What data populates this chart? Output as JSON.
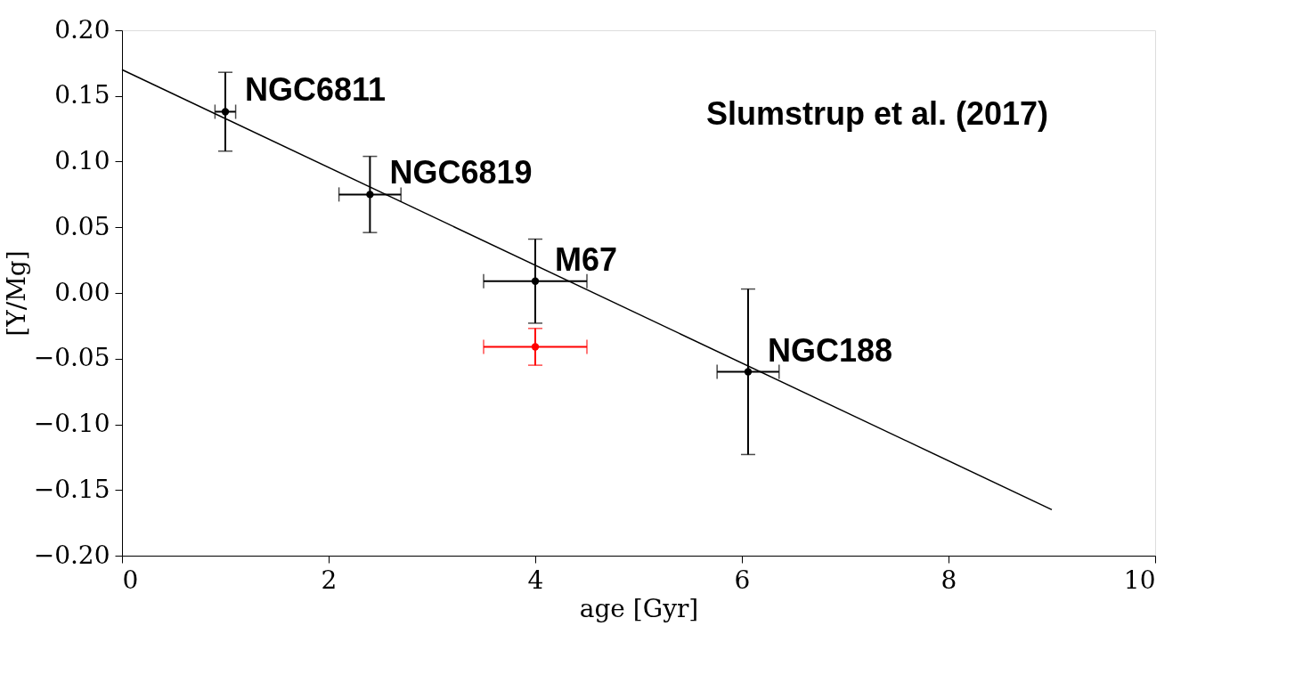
{
  "chart_data": {
    "type": "scatter",
    "xlabel": "age [Gyr]",
    "ylabel": "[Y/Mg]",
    "xlim": [
      0,
      10
    ],
    "ylim": [
      -0.2,
      0.2
    ],
    "xticks": [
      0,
      2,
      4,
      6,
      8,
      10
    ],
    "yticks": [
      {
        "value": -0.2,
        "label": "−0.20"
      },
      {
        "value": -0.15,
        "label": "−0.15"
      },
      {
        "value": -0.1,
        "label": "−0.10"
      },
      {
        "value": -0.05,
        "label": "−0.05"
      },
      {
        "value": 0,
        "label": "0.00"
      },
      {
        "value": 0.05,
        "label": "0.05"
      },
      {
        "value": 0.1,
        "label": "0.10"
      },
      {
        "value": 0.15,
        "label": "0.15"
      },
      {
        "value": 0.2,
        "label": "0.20"
      }
    ],
    "grid": false,
    "marker": "circle",
    "series": [
      {
        "color": "#000000",
        "x": [
          1.0,
          2.4,
          4.0,
          6.06
        ],
        "values": [
          0.138,
          0.075,
          0.009,
          -0.06
        ],
        "errors": [
          0.03,
          0.029,
          0.032,
          0.063
        ],
        "xerrors": [
          0.1,
          0.3,
          0.5,
          0.3
        ]
      },
      {
        "color": "#ff0000",
        "x": [
          4.0
        ],
        "values": [
          -0.041
        ],
        "errors": [
          0.014
        ],
        "xerrors": [
          0.5
        ]
      },
      {
        "type": "line",
        "marker": "none",
        "color": "#000000",
        "x": [
          0,
          9
        ],
        "values": [
          0.17,
          -0.165
        ]
      }
    ],
    "annotations": [
      {
        "text": "NGC6811",
        "x": 1.0,
        "y": 0.138
      },
      {
        "text": "NGC6819",
        "x": 2.4,
        "y": 0.075
      },
      {
        "text": "M67",
        "x": 4.0,
        "y": 0.009
      },
      {
        "text": "NGC188",
        "x": 6.06,
        "y": -0.06
      },
      "Slumstrup et al. (2017)"
    ]
  }
}
